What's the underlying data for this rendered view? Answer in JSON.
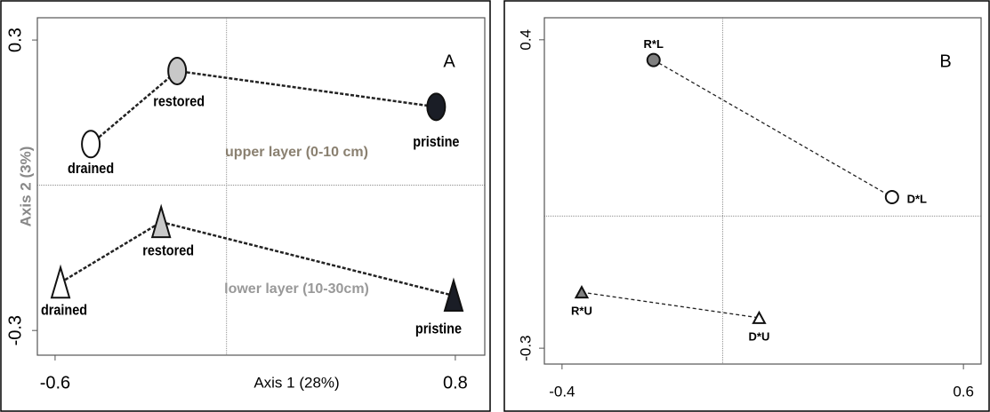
{
  "chart_data": [
    {
      "type": "scatter",
      "panel": "A",
      "xlabel": "Axis 1 (28%)",
      "ylabel": "Axis 2 (3%)",
      "xlim": [
        -0.662,
        0.903
      ],
      "ylim": [
        -0.351,
        0.346
      ],
      "xticks": [
        -0.6,
        0.8
      ],
      "yticks": [
        -0.3,
        0.3
      ],
      "zero_lines": true,
      "annotations": [
        "upper layer (0-10 cm)",
        "lower layer (10-30cm)"
      ],
      "series": [
        {
          "marker": "circle",
          "x": [
            -0.475,
            -0.173,
            0.733
          ],
          "values": [
            0.085,
            0.236,
            0.162
          ],
          "labels": [
            "drained",
            "restored",
            "pristine"
          ],
          "colors": [
            "#ffffff",
            "#c8c8c8",
            "#1a1d26"
          ]
        },
        {
          "marker": "triangle",
          "x": [
            -0.581,
            -0.229,
            0.794
          ],
          "values": [
            -0.201,
            -0.076,
            -0.228
          ],
          "labels": [
            "drained",
            "restored",
            "pristine"
          ],
          "colors": [
            "#ffffff",
            "#c8c8c8",
            "#1a1d26"
          ]
        }
      ]
    },
    {
      "type": "scatter",
      "panel": "B",
      "xlim": [
        -0.444,
        0.644
      ],
      "ylim": [
        -0.336,
        0.45
      ],
      "xticks": [
        -0.4,
        0.6
      ],
      "yticks": [
        -0.3,
        0.4
      ],
      "zero_lines": true,
      "series": [
        {
          "marker": "circle",
          "x": [
            -0.172,
            0.422
          ],
          "values": [
            0.354,
            0.043
          ],
          "labels": [
            "R*L",
            "D*L"
          ],
          "colors": [
            "#808080",
            "#ffffff"
          ]
        },
        {
          "marker": "triangle",
          "x": [
            -0.351,
            0.091
          ],
          "values": [
            -0.173,
            -0.231
          ],
          "labels": [
            "R*U",
            "D*U"
          ],
          "colors": [
            "#808080",
            "#ffffff"
          ]
        }
      ]
    }
  ]
}
